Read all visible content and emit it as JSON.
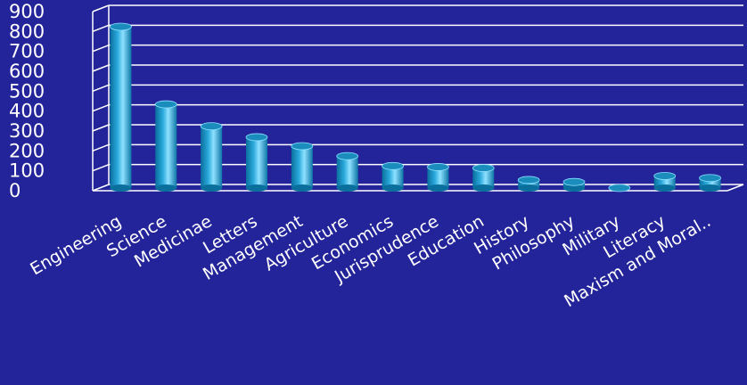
{
  "chart_data": {
    "type": "bar",
    "style": "3d-cylinder",
    "categories": [
      "Engineering",
      "Science",
      "Medicinae",
      "Letters",
      "Management",
      "Agriculture",
      "Economics",
      "Jurisprudence",
      "Education",
      "History",
      "Philosophy",
      "Military",
      "Literacy",
      "Maxism and Moral.."
    ],
    "values": [
      815,
      425,
      315,
      260,
      215,
      165,
      115,
      110,
      105,
      45,
      35,
      5,
      65,
      55
    ],
    "ylim": [
      0,
      900
    ],
    "yticks": [
      "0",
      "100",
      "200",
      "300",
      "400",
      "500",
      "600",
      "700",
      "800",
      "900"
    ],
    "grid": true,
    "legend": "none",
    "title": "",
    "xlabel": "",
    "ylabel": "",
    "colors": {
      "background": "#23239a",
      "bar_dark": "#0a6f9c",
      "bar_mid": "#2aa9dc",
      "bar_light": "#8fe1ff",
      "bar_top": "#1b8dbd",
      "grid": "#ffffff",
      "text": "#ffffff"
    }
  }
}
